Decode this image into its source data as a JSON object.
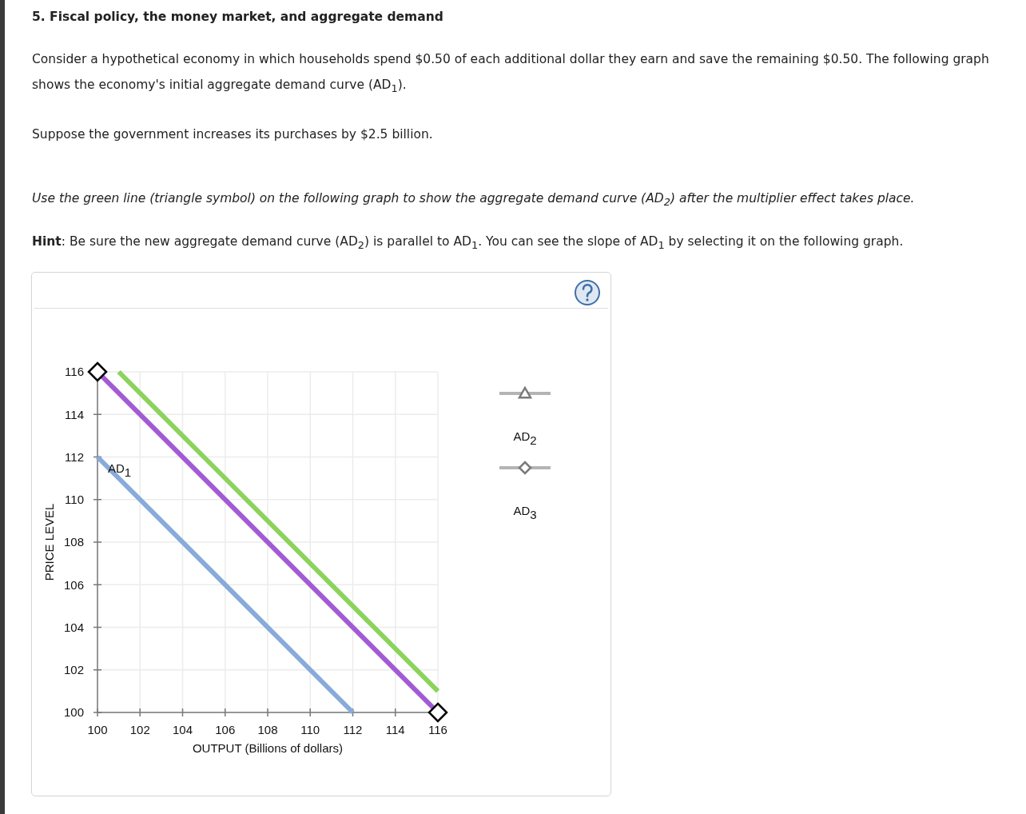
{
  "chart_data": {
    "type": "line",
    "title": "5. Fiscal policy, the money market, and aggregate demand",
    "subtitle": "Consider a hypothetical economy in which households spend $0.50 of each additional dollar they earn and save the remaining $0.50. The following graph shows the economy's initial aggregate demand curve (AD$_{1}$).",
    "annotations": [
      "Suppose the government increases its purchases by $2.5 billion.",
      "Use the green line (triangle symbol) on the following graph to show the aggregate demand curve (AD$_{2}$) after the multiplier effect takes place.",
      "Hint: Be sure the new aggregate demand curve (AD$_{2}$) is parallel to AD$_{1}$. You can see the slope of AD$_{1}$ by selecting it on the following graph.",
      "AD$_{2}$",
      "AD$_{3}$"
    ],
    "xlabel": "OUTPUT (Billions of dollars)",
    "ylabel": "PRICE LEVEL",
    "xlim": [
      100,
      116
    ],
    "xticks": [
      100,
      102,
      104,
      106,
      108,
      110,
      112,
      114,
      116
    ],
    "ylim": [
      100,
      116
    ],
    "yticks": [
      100,
      102,
      104,
      106,
      108,
      110,
      112,
      114,
      116
    ],
    "grid": true,
    "marker": "none",
    "series": [
      {
        "name": "AD$_{1}$",
        "color": "#88abd8",
        "x": [
          100,
          112
        ],
        "values": [
          112,
          100
        ]
      },
      {
        "color": "#8bd35d",
        "x": [
          101,
          116
        ],
        "values": [
          116,
          101
        ]
      },
      {
        "color": "#a25bd3",
        "x": [
          100,
          116
        ],
        "values": [
          116,
          100
        ],
        "marker": "diamond"
      }
    ]
  }
}
